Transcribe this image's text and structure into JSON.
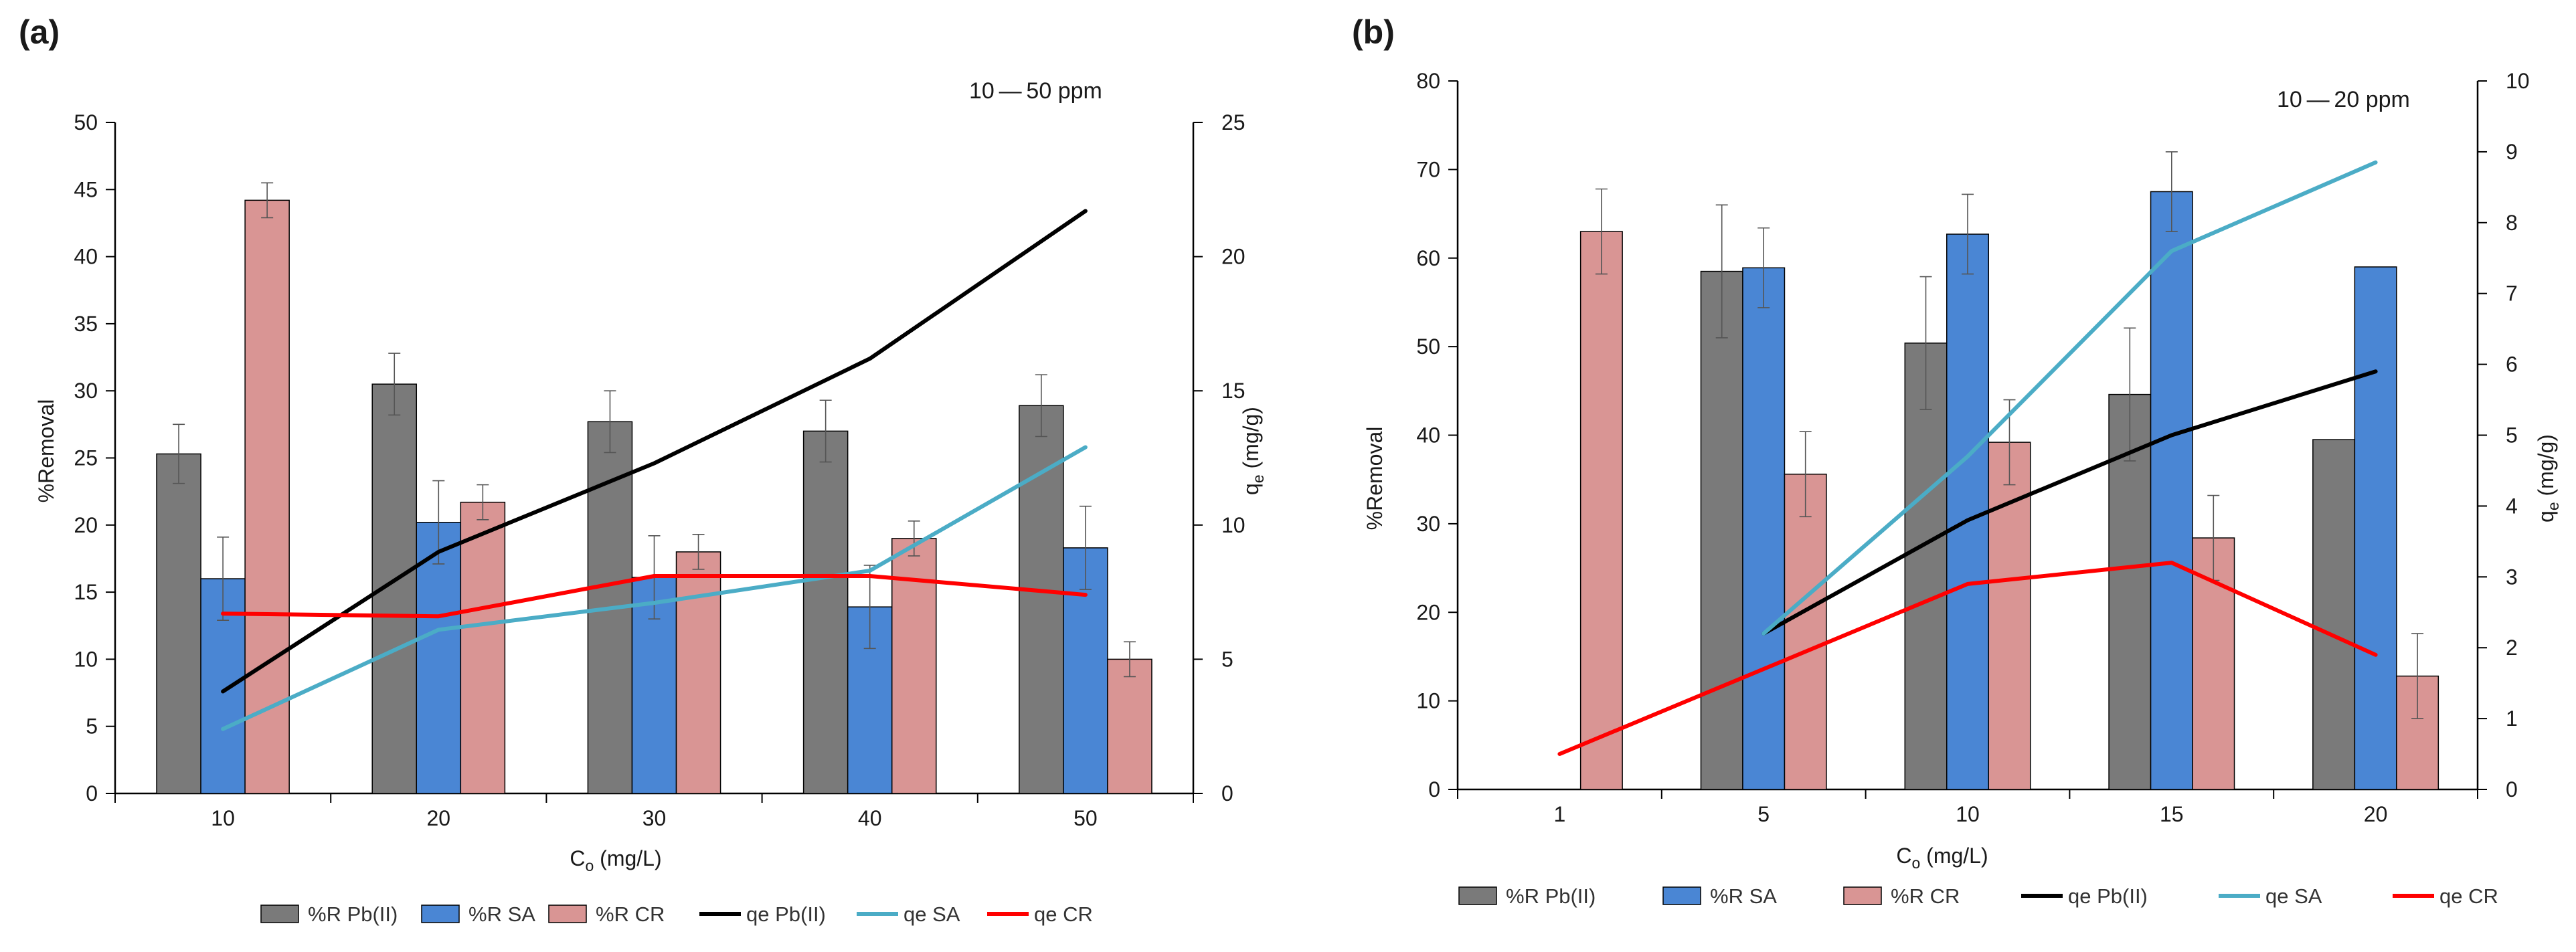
{
  "chart_data": [
    {
      "panel": "(a)",
      "type": "bar",
      "annotation": "10 — 50 ppm",
      "categories": [
        "10",
        "20",
        "30",
        "40",
        "50"
      ],
      "xlabel_main": "C",
      "xlabel_sub": "o",
      "xlabel_tail": " (mg/L)",
      "ylabel": "%Removal",
      "y2label_main": "q",
      "y2label_sub": "e",
      "y2label_tail": " (mg/g)",
      "ylim": [
        0,
        50
      ],
      "yticks": [
        0,
        5,
        10,
        15,
        20,
        25,
        30,
        35,
        40,
        45,
        50
      ],
      "y2lim": [
        0,
        25
      ],
      "y2ticks": [
        0,
        5,
        10,
        15,
        20,
        25
      ],
      "bar_series": [
        {
          "name": "%R Pb(II)",
          "color": "#7a7a7a",
          "values": [
            25.3,
            30.5,
            27.7,
            27.0,
            28.9
          ],
          "errors": [
            2.2,
            2.3,
            2.3,
            2.3,
            2.3
          ]
        },
        {
          "name": "%R SA",
          "color": "#4a86d4",
          "values": [
            16.0,
            20.2,
            16.1,
            13.9,
            18.3
          ],
          "errors": [
            3.1,
            3.1,
            3.1,
            3.1,
            3.1
          ]
        },
        {
          "name": "%R CR",
          "color": "#d99594",
          "values": [
            44.2,
            21.7,
            18.0,
            19.0,
            10.0
          ],
          "errors": [
            1.3,
            1.3,
            1.3,
            1.3,
            1.3
          ]
        }
      ],
      "line_series": [
        {
          "name": "qe Pb(II)",
          "color": "#000000",
          "values": [
            3.8,
            9.0,
            12.3,
            16.2,
            21.7
          ]
        },
        {
          "name": "qe SA",
          "color": "#4bacc6",
          "values": [
            2.4,
            6.1,
            7.1,
            8.3,
            12.9
          ]
        },
        {
          "name": "qe CR",
          "color": "#ff0000",
          "values": [
            6.7,
            6.6,
            8.1,
            8.1,
            7.4
          ]
        }
      ],
      "legend_position": "bottom"
    },
    {
      "panel": "(b)",
      "type": "bar",
      "annotation": "10 — 20 ppm",
      "categories": [
        "1",
        "5",
        "10",
        "15",
        "20"
      ],
      "xlabel_main": "C",
      "xlabel_sub": "o",
      "xlabel_tail": " (mg/L)",
      "ylabel": "%Removal",
      "y2label_main": "q",
      "y2label_sub": "e",
      "y2label_tail": " (mg/g)",
      "ylim": [
        0,
        80
      ],
      "yticks": [
        0,
        10,
        20,
        30,
        40,
        50,
        60,
        70,
        80
      ],
      "y2lim": [
        0,
        10
      ],
      "y2ticks": [
        0,
        1,
        2,
        3,
        4,
        5,
        6,
        7,
        8,
        9,
        10
      ],
      "bar_series": [
        {
          "name": "%R Pb(II)",
          "color": "#7a7a7a",
          "values": [
            null,
            58.5,
            50.4,
            44.6,
            39.5
          ],
          "errors": [
            null,
            7.5,
            7.5,
            7.5,
            null
          ]
        },
        {
          "name": "%R SA",
          "color": "#4a86d4",
          "values": [
            null,
            58.9,
            62.7,
            67.5,
            59.0
          ],
          "errors": [
            null,
            4.5,
            4.5,
            4.5,
            null
          ]
        },
        {
          "name": "%R CR",
          "color": "#d99594",
          "values": [
            63.0,
            35.6,
            39.2,
            28.4,
            12.8
          ],
          "errors": [
            4.8,
            4.8,
            4.8,
            4.8,
            4.8
          ]
        }
      ],
      "line_series": [
        {
          "name": "qe Pb(II)",
          "color": "#000000",
          "values": [
            null,
            2.2,
            3.8,
            5.0,
            5.9
          ]
        },
        {
          "name": "qe SA",
          "color": "#4bacc6",
          "values": [
            null,
            2.2,
            4.7,
            7.6,
            8.85
          ]
        },
        {
          "name": "qe CR",
          "color": "#ff0000",
          "values": [
            0.5,
            1.7,
            2.9,
            3.2,
            1.9
          ]
        }
      ],
      "legend_position": "bottom"
    }
  ]
}
